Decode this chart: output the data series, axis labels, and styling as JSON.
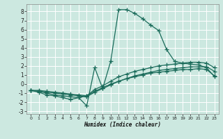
{
  "xlabel": "Humidex (Indice chaleur)",
  "bg_color": "#cce8e0",
  "grid_color": "#ffffff",
  "line_color": "#1a6b5a",
  "xlim": [
    -0.5,
    23.5
  ],
  "ylim": [
    -3.3,
    8.8
  ],
  "xticks": [
    0,
    1,
    2,
    3,
    4,
    5,
    6,
    7,
    8,
    9,
    10,
    11,
    12,
    13,
    14,
    15,
    16,
    17,
    18,
    19,
    20,
    21,
    22,
    23
  ],
  "yticks": [
    -3,
    -2,
    -1,
    0,
    1,
    2,
    3,
    4,
    5,
    6,
    7,
    8
  ],
  "line1_x": [
    0,
    1,
    2,
    3,
    4,
    5,
    6,
    7,
    8,
    9,
    10,
    11,
    12,
    13,
    14,
    15,
    16,
    17,
    18,
    19,
    20,
    21,
    22,
    23
  ],
  "line1_y": [
    -0.7,
    -0.9,
    -1.2,
    -1.3,
    -1.5,
    -1.7,
    -1.5,
    -2.4,
    1.8,
    -0.5,
    2.5,
    8.2,
    8.2,
    7.8,
    7.2,
    6.5,
    5.9,
    3.8,
    2.5,
    2.3,
    2.2,
    2.1,
    1.8,
    0.8
  ],
  "line2_x": [
    0,
    1,
    2,
    3,
    4,
    5,
    6,
    7,
    8,
    9,
    10,
    11,
    12,
    13,
    14,
    15,
    16,
    17,
    18,
    19,
    20,
    21,
    22,
    23
  ],
  "line2_y": [
    -0.7,
    -0.8,
    -1.0,
    -1.2,
    -1.3,
    -1.4,
    -1.5,
    -1.3,
    -0.6,
    -0.2,
    0.3,
    0.8,
    1.1,
    1.4,
    1.6,
    1.8,
    2.0,
    2.1,
    2.2,
    2.3,
    2.4,
    2.4,
    2.3,
    1.8
  ],
  "line3_x": [
    0,
    1,
    2,
    3,
    4,
    5,
    6,
    7,
    8,
    9,
    10,
    11,
    12,
    13,
    14,
    15,
    16,
    17,
    18,
    19,
    20,
    21,
    22,
    23
  ],
  "line3_y": [
    -0.7,
    -0.8,
    -0.9,
    -1.0,
    -1.1,
    -1.2,
    -1.3,
    -1.4,
    -0.9,
    -0.5,
    -0.1,
    0.3,
    0.6,
    0.9,
    1.1,
    1.3,
    1.5,
    1.6,
    1.7,
    1.8,
    1.9,
    1.9,
    1.9,
    1.4
  ],
  "line4_x": [
    0,
    1,
    2,
    3,
    4,
    5,
    6,
    7,
    8,
    9,
    10,
    11,
    12,
    13,
    14,
    15,
    16,
    17,
    18,
    19,
    20,
    21,
    22,
    23
  ],
  "line4_y": [
    -0.7,
    -0.7,
    -0.8,
    -0.9,
    -1.0,
    -1.1,
    -1.2,
    -1.3,
    -0.8,
    -0.4,
    0.0,
    0.3,
    0.6,
    0.8,
    1.0,
    1.2,
    1.3,
    1.4,
    1.5,
    1.6,
    1.6,
    1.7,
    1.6,
    0.9
  ]
}
